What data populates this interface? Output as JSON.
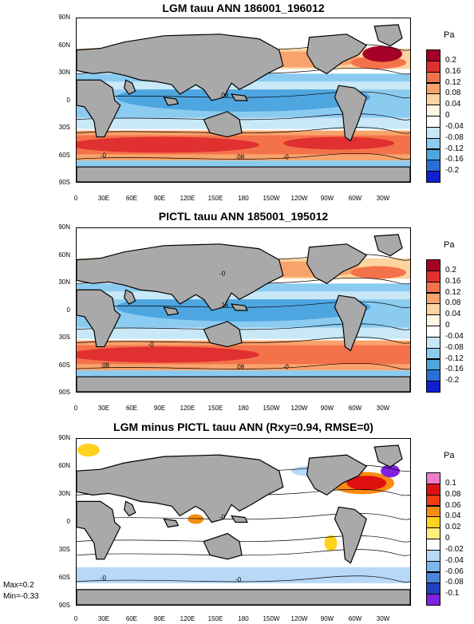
{
  "chart_data": [
    {
      "type": "heatmap",
      "title": "LGM tauu ANN 186001_196012",
      "units": "Pa",
      "y_ticks": [
        "90N",
        "60N",
        "30N",
        "0",
        "30S",
        "60S",
        "90S"
      ],
      "x_ticks": [
        "0",
        "30E",
        "60E",
        "90E",
        "120E",
        "150E",
        "180",
        "150W",
        "120W",
        "90W",
        "60W",
        "30W"
      ],
      "colorbar_levels": [
        "0.2",
        "0.16",
        "0.12",
        "0.08",
        "0.04",
        "0",
        "-0.04",
        "-0.08",
        "-0.12",
        "-0.16",
        "-0.2"
      ],
      "colorbar_colors": [
        "#a50026",
        "#e03030",
        "#f4724a",
        "#f9a36c",
        "#fdd4a0",
        "#fff6e6",
        "#ffffff",
        "#c8e8f7",
        "#8ccbf0",
        "#4ea6e0",
        "#2a6fd8",
        "#1020d0"
      ],
      "contour_labels": [
        ".08",
        "-0",
        ".08",
        "-0"
      ]
    },
    {
      "type": "heatmap",
      "title": "PICTL tauu ANN 185001_195012",
      "units": "Pa",
      "y_ticks": [
        "90N",
        "60N",
        "30N",
        "0",
        "30S",
        "60S",
        "90S"
      ],
      "x_ticks": [
        "0",
        "30E",
        "60E",
        "90E",
        "120E",
        "150E",
        "180",
        "150W",
        "120W",
        "90W",
        "60W",
        "30W"
      ],
      "colorbar_levels": [
        "0.2",
        "0.16",
        "0.12",
        "0.08",
        "0.04",
        "0",
        "-0.04",
        "-0.08",
        "-0.12",
        "-0.16",
        "-0.2"
      ],
      "colorbar_colors": [
        "#a50026",
        "#e03030",
        "#f4724a",
        "#f9a36c",
        "#fdd4a0",
        "#fff6e6",
        "#ffffff",
        "#c8e8f7",
        "#8ccbf0",
        "#4ea6e0",
        "#2a6fd8",
        "#1020d0"
      ],
      "contour_labels": [
        ".16",
        ".08",
        ".08",
        "-0",
        "-0",
        "-0"
      ]
    },
    {
      "type": "heatmap",
      "title": "LGM minus PICTL tauu ANN (Rxy=0.94, RMSE=0)",
      "units": "Pa",
      "y_ticks": [
        "90N",
        "60N",
        "30N",
        "0",
        "30S",
        "60S",
        "90S"
      ],
      "x_ticks": [
        "0",
        "30E",
        "60E",
        "90E",
        "120E",
        "150E",
        "180",
        "150W",
        "120W",
        "90W",
        "60W",
        "30W"
      ],
      "colorbar_levels": [
        "0.1",
        "0.08",
        "0.06",
        "0.04",
        "0.02",
        "0",
        "-0.02",
        "-0.04",
        "-0.06",
        "-0.08",
        "-0.1"
      ],
      "colorbar_colors": [
        "#f07cc8",
        "#e01010",
        "#f23c14",
        "#f98c10",
        "#ffd21c",
        "#fff07a",
        "#ffffff",
        "#b8d8f8",
        "#80b6ee",
        "#4a86dc",
        "#2040c0",
        "#8020e0"
      ],
      "contour_labels": [
        "-0",
        "-0",
        "-0"
      ],
      "stats": {
        "max": "Max=0.2",
        "min": "Min=-0.33"
      }
    }
  ]
}
